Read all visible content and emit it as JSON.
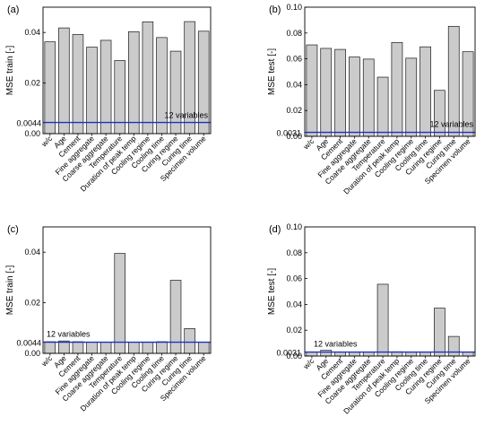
{
  "colors": {
    "bar": "#cbcbcb",
    "bar_edge": "#1a1a1a",
    "baseline": "#1f2fbf",
    "baseline_label": "#1f2fbf"
  },
  "chart_data": [
    {
      "panel": "(a)",
      "type": "bar",
      "ylabel": "MSE train [-]",
      "ylim": [
        0,
        0.05
      ],
      "yticks": [
        "0.00",
        "0.02",
        "0.04"
      ],
      "ytick_values": [
        0,
        0.02,
        0.04
      ],
      "baseline": {
        "value": 0.0044,
        "label": "0.0044",
        "text": "12 variables",
        "text_anchor": "right"
      },
      "categories": [
        "w/c",
        "Age",
        "Cement",
        "Fine aggregate",
        "Coarse aggregate",
        "Temperature",
        "Duration of peak temp",
        "Cooling regime",
        "Cooling time",
        "Curing regime",
        "Curing time",
        "Specimen volume"
      ],
      "values": [
        0.0363,
        0.0418,
        0.0392,
        0.0342,
        0.0369,
        0.0289,
        0.0403,
        0.0442,
        0.038,
        0.0326,
        0.0443,
        0.0405
      ]
    },
    {
      "panel": "(b)",
      "type": "bar",
      "ylabel": "MSE test [-]",
      "ylim": [
        0,
        0.1
      ],
      "yticks": [
        "0.00",
        "0.02",
        "0.04",
        "0.06",
        "0.08",
        "0.10"
      ],
      "ytick_values": [
        0,
        0.02,
        0.04,
        0.06,
        0.08,
        0.1
      ],
      "baseline": {
        "value": 0.0031,
        "label": "0.0031",
        "text": "12 variables",
        "text_anchor": "right"
      },
      "categories": [
        "w/c",
        "Age",
        "Cement",
        "Fine aggregate",
        "Coarse aggregate",
        "Temperature",
        "Duration of peak temp",
        "Cooling regime",
        "Cooling time",
        "Curing regime",
        "Curing time",
        "Specimen volume"
      ],
      "values": [
        0.0708,
        0.0681,
        0.0673,
        0.0614,
        0.0598,
        0.0458,
        0.0727,
        0.0605,
        0.0693,
        0.0356,
        0.0852,
        0.0655
      ]
    },
    {
      "panel": "(c)",
      "type": "bar",
      "ylabel": "MSE train [-]",
      "ylim": [
        0,
        0.05
      ],
      "yticks": [
        "0.00",
        "0.02",
        "0.04"
      ],
      "ytick_values": [
        0,
        0.02,
        0.04
      ],
      "baseline": {
        "value": 0.0044,
        "label": "0.0044",
        "text": "12 variables",
        "text_anchor": "left"
      },
      "categories": [
        "w/c",
        "Age",
        "Cement",
        "Fine aggregate",
        "Coarse aggregate",
        "Temperature",
        "Duration of peak temp",
        "Cooling regime",
        "Cooling time",
        "Curing regime",
        "Curing time",
        "Specimen volume"
      ],
      "values": [
        0.0046,
        0.0049,
        0.0046,
        0.0044,
        0.0044,
        0.0395,
        0.0044,
        0.0045,
        0.0046,
        0.0289,
        0.0098,
        0.0044
      ]
    },
    {
      "panel": "(d)",
      "type": "bar",
      "ylabel": "MSE test [-]",
      "ylim": [
        0,
        0.1
      ],
      "yticks": [
        "0.00",
        "0.02",
        "0.04",
        "0.06",
        "0.08",
        "0.10"
      ],
      "ytick_values": [
        0,
        0.02,
        0.04,
        0.06,
        0.08,
        0.1
      ],
      "baseline": {
        "value": 0.0031,
        "label": "0.0031",
        "text": "12 variables",
        "text_anchor": "left"
      },
      "categories": [
        "w/c",
        "Age",
        "Cement",
        "Fine aggregate",
        "Coarse aggregate",
        "Temperature",
        "Duration of peak temp",
        "Cooling regime",
        "Cooling time",
        "Curing regime",
        "Curing time",
        "Specimen volume"
      ],
      "values": [
        0.0031,
        0.0045,
        0.0031,
        0.0031,
        0.0031,
        0.0556,
        0.0033,
        0.0031,
        0.0031,
        0.0371,
        0.0152,
        0.0031
      ]
    }
  ]
}
